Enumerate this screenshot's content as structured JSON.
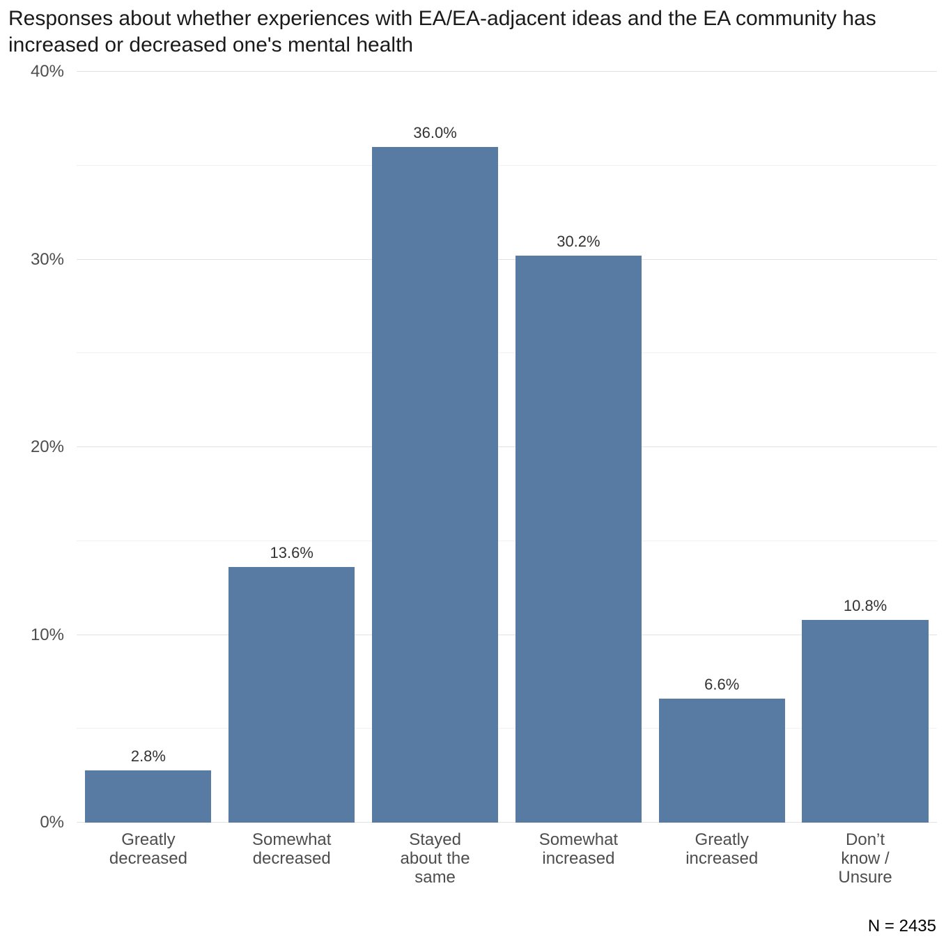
{
  "title": "Responses about whether experiences with EA/EA-adjacent ideas and the EA community has increased or decreased one's mental health",
  "footer": {
    "n_label": "N = 2435"
  },
  "chart_data": {
    "type": "bar",
    "title": "Responses about whether experiences with EA/EA-adjacent ideas and the EA community has increased or decreased one's mental health",
    "categories": [
      "Greatly decreased",
      "Somewhat decreased",
      "Stayed about the same",
      "Somewhat increased",
      "Greatly increased",
      "Don't know / Unsure"
    ],
    "categories_wrapped": [
      "Greatly\ndecreased",
      "Somewhat\ndecreased",
      "Stayed\nabout the\nsame",
      "Somewhat\nincreased",
      "Greatly\nincreased",
      "Don’t\nknow /\nUnsure"
    ],
    "values": [
      2.8,
      13.6,
      36.0,
      30.2,
      6.6,
      10.8
    ],
    "value_labels": [
      "2.8%",
      "13.6%",
      "36.0%",
      "30.2%",
      "6.6%",
      "10.8%"
    ],
    "xlabel": "",
    "ylabel": "",
    "ylim": [
      0,
      40
    ],
    "yticks": [
      "0%",
      "10%",
      "20%",
      "30%",
      "40%"
    ],
    "ytick_values": [
      0,
      10,
      20,
      30,
      40
    ],
    "yminor_values": [
      5,
      15,
      25,
      35
    ],
    "grid": "horizontal, major and minor, light grey, on white background",
    "legend": "none",
    "bar_color": "#587ba4",
    "annotation": "N = 2435"
  }
}
